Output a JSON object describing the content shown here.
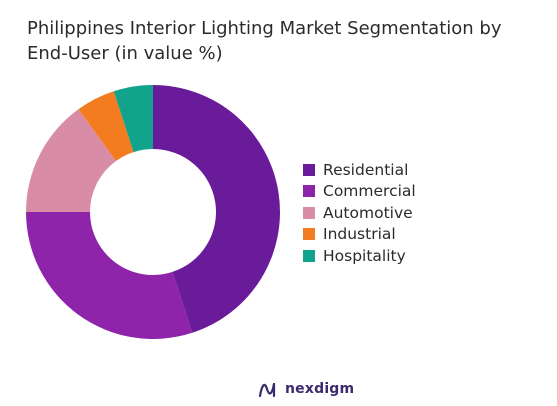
{
  "chart_data": {
    "type": "pie",
    "variant": "donut",
    "title": "Philippines Interior Lighting Market Segmentation by End-User (in value %)",
    "categories": [
      "Residential",
      "Commercial",
      "Automotive",
      "Industrial",
      "Hospitality"
    ],
    "values": [
      45,
      30,
      15,
      5,
      5
    ],
    "unit": "%",
    "colors": [
      "#6a1b9a",
      "#8e24aa",
      "#d98ca6",
      "#f47c20",
      "#12a38c"
    ],
    "legend_position": "right"
  },
  "brand": {
    "name": "nexdigm",
    "icon": "nexdigm-logo-icon"
  }
}
